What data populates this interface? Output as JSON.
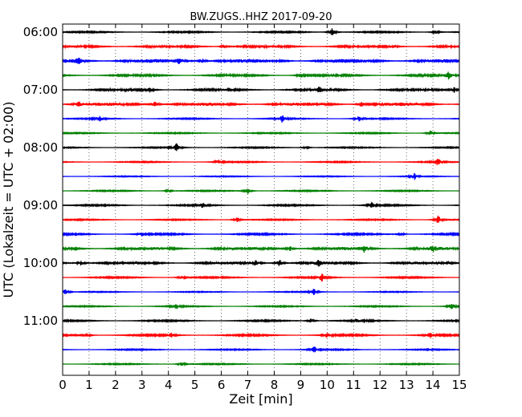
{
  "chart_data": {
    "type": "line",
    "title": "BW.ZUGS..HHZ 2017-09-20",
    "xlabel": "Zeit  [min]",
    "ylabel": "UTC (Lokalzeit = UTC + 02:00)",
    "xlim": [
      0,
      15
    ],
    "x_ticks": [
      0,
      1,
      2,
      3,
      4,
      5,
      6,
      7,
      8,
      9,
      10,
      11,
      12,
      13,
      14,
      15
    ],
    "y_tick_labels": [
      "06:00",
      "07:00",
      "08:00",
      "09:00",
      "10:00",
      "11:00"
    ],
    "grid": "vertical-dotted",
    "line_colors": [
      "#000000",
      "#ff0000",
      "#0000ff",
      "#008000"
    ],
    "traces": [
      {
        "start": "06:00",
        "noise": 0.12,
        "events": [
          [
            10.2,
            0.85
          ],
          [
            14.1,
            0.45
          ]
        ]
      },
      {
        "start": "06:15",
        "noise": 0.22,
        "events": [
          [
            6.1,
            0.3
          ],
          [
            12.5,
            0.3
          ]
        ]
      },
      {
        "start": "06:30",
        "noise": 0.35,
        "events": [
          [
            0.6,
            0.5
          ],
          [
            4.4,
            0.45
          ],
          [
            5.3,
            0.4
          ]
        ]
      },
      {
        "start": "06:45",
        "noise": 0.18,
        "events": [
          [
            9.0,
            0.45
          ],
          [
            14.6,
            0.7
          ]
        ]
      },
      {
        "start": "07:00",
        "noise": 0.2,
        "events": [
          [
            3.3,
            0.4
          ],
          [
            9.7,
            0.55
          ],
          [
            14.8,
            0.55
          ]
        ]
      },
      {
        "start": "07:15",
        "noise": 0.3,
        "events": [
          [
            0.6,
            0.55
          ],
          [
            3.5,
            0.6
          ],
          [
            11.3,
            0.5
          ]
        ]
      },
      {
        "start": "07:30",
        "noise": 0.1,
        "events": [
          [
            1.4,
            0.55
          ],
          [
            8.3,
            0.7
          ],
          [
            11.2,
            0.55
          ]
        ]
      },
      {
        "start": "07:45",
        "noise": 0.1,
        "events": [
          [
            13.9,
            0.55
          ]
        ]
      },
      {
        "start": "08:00",
        "noise": 0.1,
        "events": [
          [
            4.3,
            0.8
          ],
          [
            9.2,
            0.3
          ]
        ]
      },
      {
        "start": "08:15",
        "noise": 0.1,
        "events": [
          [
            5.9,
            0.4
          ],
          [
            14.2,
            0.8
          ]
        ]
      },
      {
        "start": "08:30",
        "noise": 0.08,
        "events": [
          [
            13.3,
            0.6
          ]
        ]
      },
      {
        "start": "08:45",
        "noise": 0.1,
        "events": [
          [
            4.0,
            0.3
          ],
          [
            7.0,
            0.6
          ]
        ]
      },
      {
        "start": "09:00",
        "noise": 0.12,
        "events": [
          [
            5.3,
            0.5
          ],
          [
            11.7,
            0.6
          ]
        ]
      },
      {
        "start": "09:15",
        "noise": 0.1,
        "events": [
          [
            6.6,
            0.5
          ],
          [
            14.2,
            0.8
          ]
        ]
      },
      {
        "start": "09:30",
        "noise": 0.14,
        "events": [
          [
            3.0,
            0.3
          ],
          [
            12.8,
            0.3
          ]
        ]
      },
      {
        "start": "09:45",
        "noise": 0.28,
        "events": [
          [
            8.6,
            0.5
          ],
          [
            11.4,
            0.6
          ],
          [
            14.0,
            0.4
          ]
        ]
      },
      {
        "start": "10:00",
        "noise": 0.25,
        "events": [
          [
            0.7,
            0.5
          ],
          [
            7.3,
            0.6
          ],
          [
            8.2,
            0.7
          ],
          [
            9.7,
            0.5
          ]
        ]
      },
      {
        "start": "10:15",
        "noise": 0.12,
        "events": [
          [
            4.5,
            0.4
          ],
          [
            9.8,
            0.7
          ]
        ]
      },
      {
        "start": "10:30",
        "noise": 0.08,
        "events": [
          [
            0.1,
            0.5
          ],
          [
            9.5,
            0.6
          ]
        ]
      },
      {
        "start": "10:45",
        "noise": 0.1,
        "events": [
          [
            4.3,
            0.5
          ],
          [
            14.7,
            0.6
          ]
        ]
      },
      {
        "start": "11:00",
        "noise": 0.12,
        "events": [
          [
            9.4,
            0.5
          ],
          [
            11.1,
            0.3
          ],
          [
            11.4,
            0.3
          ]
        ]
      },
      {
        "start": "11:15",
        "noise": 0.14,
        "events": [
          [
            0.9,
            0.4
          ],
          [
            4.1,
            0.45
          ],
          [
            10.0,
            0.45
          ],
          [
            13.9,
            0.5
          ]
        ]
      },
      {
        "start": "11:30",
        "noise": 0.1,
        "events": [
          [
            9.5,
            0.7
          ]
        ]
      },
      {
        "start": "11:45",
        "noise": 0.1,
        "events": [
          [
            4.5,
            0.45
          ]
        ]
      }
    ]
  }
}
